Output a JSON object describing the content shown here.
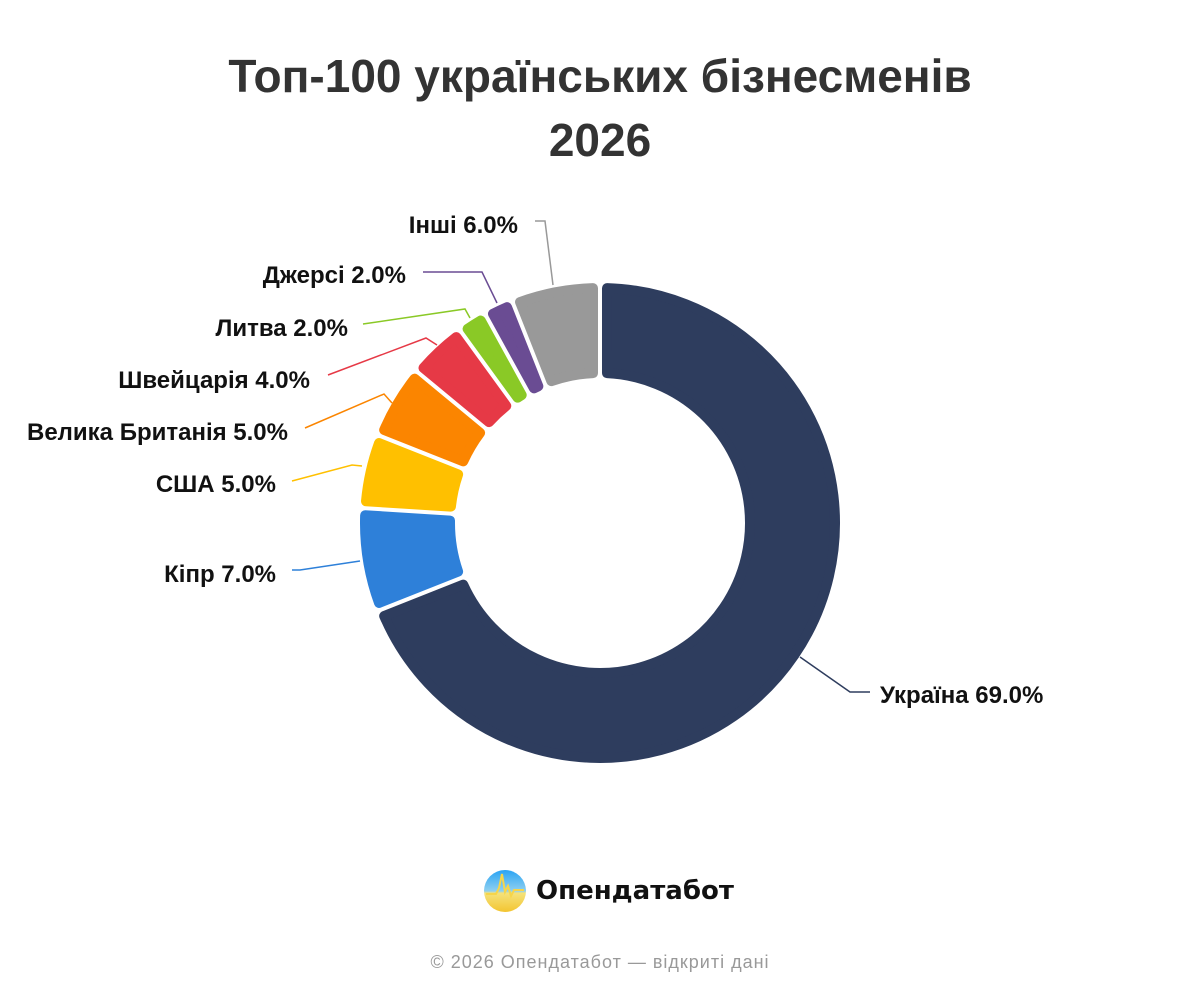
{
  "chart_data": {
    "type": "pie",
    "variant": "donut",
    "title_line1": "Топ-100 українських бізнесменів",
    "title_line2": "2026",
    "categories": [
      "Україна",
      "Кіпр",
      "США",
      "Велика Британія",
      "Швейцарія",
      "Литва",
      "Джерсі",
      "Інші"
    ],
    "values": [
      69.0,
      7.0,
      5.0,
      5.0,
      4.0,
      2.0,
      2.0,
      6.0
    ],
    "colors": [
      "#2e3d5e",
      "#2e80d9",
      "#ffc000",
      "#fb8500",
      "#e63946",
      "#8ac926",
      "#6a4c93",
      "#999999"
    ],
    "labels": [
      "Україна 69.0%",
      "Кіпр 7.0%",
      "США 5.0%",
      "Велика Британія 5.0%",
      "Швейцарія 4.0%",
      "Литва 2.0%",
      "Джерсі 2.0%",
      "Інші 6.0%"
    ],
    "unit": "%",
    "start": "top, clockwise"
  },
  "brand": {
    "name": "Опендатабот"
  },
  "footer": "© 2026 Опендатабот — відкриті дані"
}
